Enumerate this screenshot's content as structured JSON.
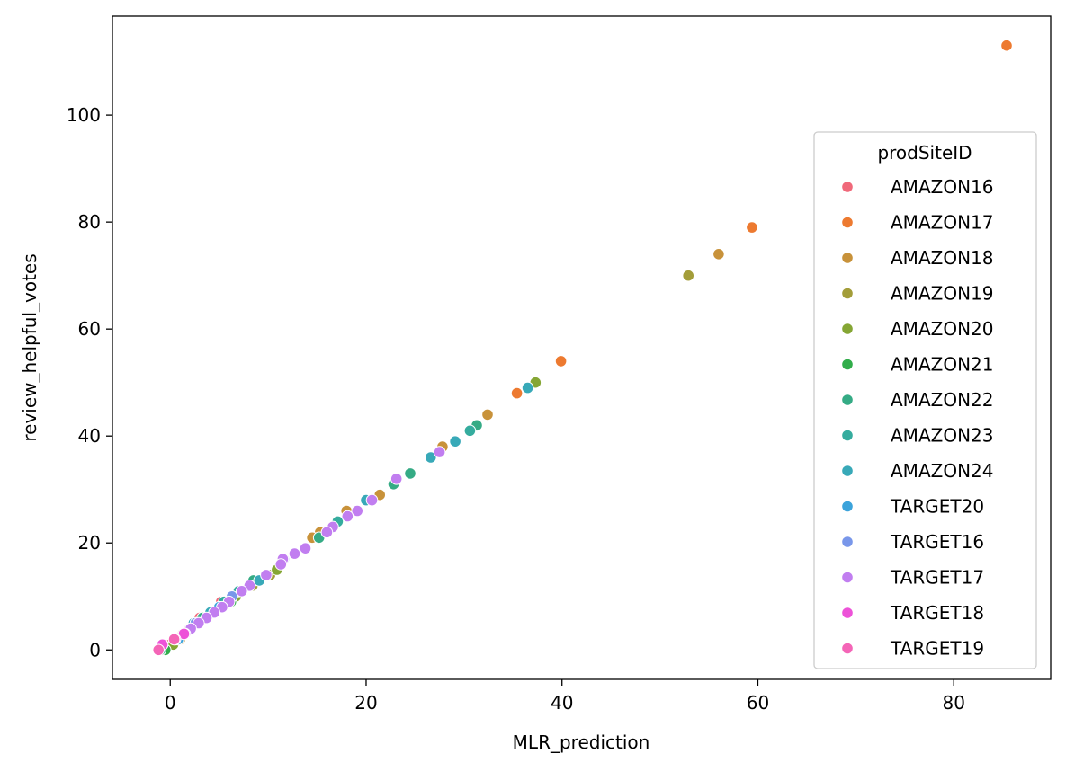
{
  "chart_data": {
    "type": "scatter",
    "title": "",
    "xlabel": "MLR_prediction",
    "ylabel": "review_helpful_votes",
    "xlim": [
      -5.9,
      89.9
    ],
    "ylim": [
      -5.5,
      118.5
    ],
    "xticks": [
      0,
      20,
      40,
      60,
      80
    ],
    "yticks": [
      0,
      20,
      40,
      60,
      80,
      100
    ],
    "grid": false,
    "legend": {
      "title": "prodSiteID",
      "placement": "right",
      "entries": [
        "AMAZON16",
        "AMAZON17",
        "AMAZON18",
        "AMAZON19",
        "AMAZON20",
        "AMAZON21",
        "AMAZON22",
        "AMAZON23",
        "AMAZON24",
        "TARGET20",
        "TARGET16",
        "TARGET17",
        "TARGET18",
        "TARGET19"
      ]
    },
    "series": [
      {
        "name": "AMAZON16",
        "color": "#f0697a",
        "points": [
          [
            -1,
            0
          ],
          [
            0,
            1
          ],
          [
            1.3,
            3
          ],
          [
            3,
            6
          ],
          [
            5.2,
            9
          ]
        ]
      },
      {
        "name": "AMAZON17",
        "color": "#ed7a30",
        "points": [
          [
            85.4,
            113
          ],
          [
            59.4,
            79
          ],
          [
            39.9,
            54
          ],
          [
            35.4,
            48
          ],
          [
            0.5,
            2
          ]
        ]
      },
      {
        "name": "AMAZON18",
        "color": "#c8923a",
        "points": [
          [
            56,
            74
          ],
          [
            32.4,
            44
          ],
          [
            27.8,
            38
          ],
          [
            21.4,
            29
          ],
          [
            18,
            26
          ],
          [
            15.3,
            22
          ],
          [
            14.5,
            21
          ],
          [
            4.2,
            7
          ],
          [
            1,
            2
          ]
        ]
      },
      {
        "name": "AMAZON19",
        "color": "#a39d39",
        "points": [
          [
            52.9,
            70
          ],
          [
            10.2,
            14
          ],
          [
            8.4,
            12
          ],
          [
            2,
            4
          ]
        ]
      },
      {
        "name": "AMAZON20",
        "color": "#85a634",
        "points": [
          [
            37.3,
            50
          ],
          [
            10.9,
            15
          ],
          [
            6.7,
            10
          ],
          [
            0.3,
            1
          ]
        ]
      },
      {
        "name": "AMAZON21",
        "color": "#31ad4a",
        "points": [
          [
            6.2,
            9
          ],
          [
            1.5,
            3
          ],
          [
            -0.5,
            0
          ]
        ]
      },
      {
        "name": "AMAZON22",
        "color": "#35ab85",
        "points": [
          [
            31.3,
            42
          ],
          [
            24.5,
            33
          ],
          [
            22.8,
            31
          ],
          [
            15.2,
            21
          ],
          [
            8.5,
            13
          ],
          [
            3.3,
            6
          ],
          [
            -1,
            0
          ]
        ]
      },
      {
        "name": "AMAZON23",
        "color": "#35ac9e",
        "points": [
          [
            30.6,
            41
          ],
          [
            17.1,
            24
          ],
          [
            7,
            11
          ],
          [
            5.5,
            9
          ],
          [
            -0.8,
            1
          ]
        ]
      },
      {
        "name": "AMAZON24",
        "color": "#38a9b8",
        "points": [
          [
            36.5,
            49
          ],
          [
            29.1,
            39
          ],
          [
            26.6,
            36
          ],
          [
            20,
            28
          ],
          [
            9.1,
            13
          ],
          [
            4.1,
            7
          ],
          [
            2.4,
            5
          ]
        ]
      },
      {
        "name": "TARGET20",
        "color": "#3ba3db",
        "points": [
          [
            5,
            8
          ],
          [
            2.9,
            5
          ],
          [
            0.8,
            2
          ]
        ]
      },
      {
        "name": "TARGET16",
        "color": "#7997ea",
        "points": [
          [
            11.6,
            17
          ],
          [
            6.3,
            10
          ],
          [
            2.6,
            5
          ]
        ]
      },
      {
        "name": "TARGET17",
        "color": "#c17ef0",
        "points": [
          [
            27.5,
            37
          ],
          [
            23.1,
            32
          ],
          [
            20.6,
            28
          ],
          [
            19.1,
            26
          ],
          [
            18.1,
            25
          ],
          [
            16.6,
            23
          ],
          [
            16,
            22
          ],
          [
            13.8,
            19
          ],
          [
            12.7,
            18
          ],
          [
            11.5,
            17
          ],
          [
            11.3,
            16
          ],
          [
            9.8,
            14
          ],
          [
            8.1,
            12
          ],
          [
            7.3,
            11
          ],
          [
            6,
            9
          ],
          [
            5.3,
            8
          ],
          [
            4.5,
            7
          ],
          [
            3.7,
            6
          ],
          [
            2.9,
            5
          ],
          [
            2.1,
            4
          ],
          [
            1.5,
            3
          ]
        ]
      },
      {
        "name": "TARGET18",
        "color": "#ed52d8",
        "points": [
          [
            1.4,
            3
          ],
          [
            0.5,
            2
          ],
          [
            -0.8,
            1
          ]
        ]
      },
      {
        "name": "TARGET19",
        "color": "#f465b7",
        "points": [
          [
            0.4,
            2
          ],
          [
            -1.2,
            0
          ]
        ]
      }
    ]
  }
}
